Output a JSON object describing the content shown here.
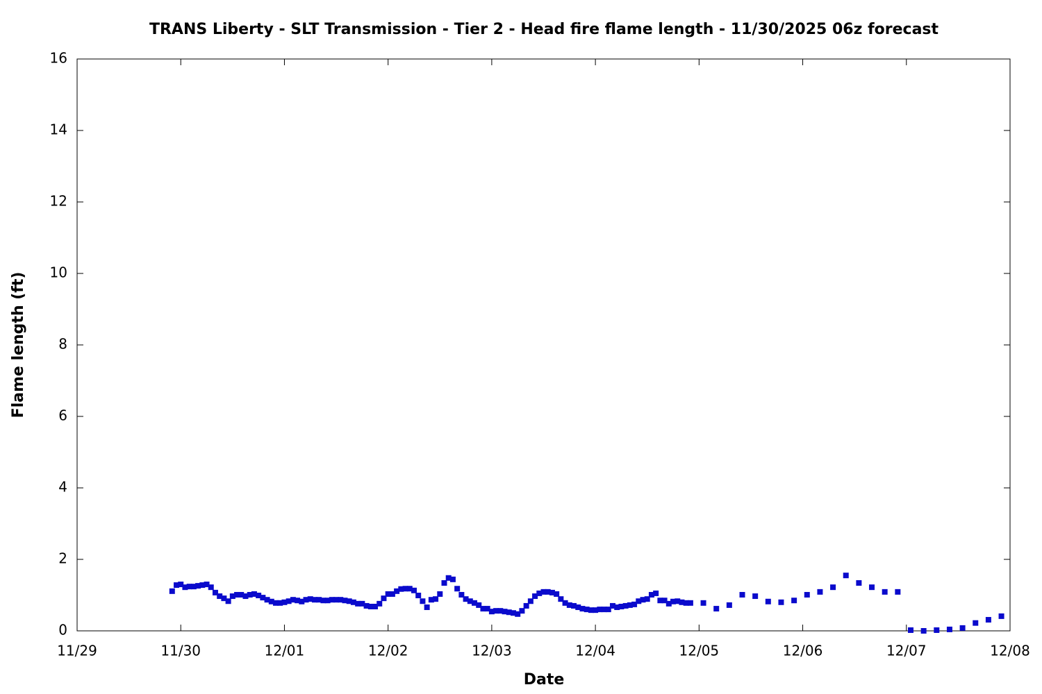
{
  "chart_data": {
    "type": "scatter",
    "title": "TRANS Liberty - SLT Transmission - Tier 2 - Head fire flame length - 11/30/2025 06z forecast",
    "x_label": "Date",
    "y_label": "Flame length (ft)",
    "color": "#0a0acc",
    "x": [
      22,
      23,
      24,
      25,
      26,
      27,
      28,
      29,
      30,
      31,
      32,
      33,
      34,
      35,
      36,
      37,
      38,
      39,
      40,
      41,
      42,
      43,
      44,
      45,
      46,
      47,
      48,
      49,
      50,
      51,
      52,
      53,
      54,
      55,
      56,
      57,
      58,
      59,
      60,
      61,
      62,
      63,
      64,
      65,
      66,
      67,
      68,
      69,
      70,
      71,
      72,
      73,
      74,
      75,
      76,
      77,
      78,
      79,
      80,
      81,
      82,
      83,
      84,
      85,
      86,
      87,
      88,
      89,
      90,
      91,
      92,
      93,
      94,
      95,
      96,
      97,
      98,
      99,
      100,
      101,
      102,
      103,
      104,
      105,
      106,
      107,
      108,
      109,
      110,
      111,
      112,
      113,
      114,
      115,
      116,
      117,
      118,
      119,
      120,
      121,
      122,
      123,
      124,
      125,
      126,
      127,
      128,
      129,
      130,
      131,
      132,
      133,
      134,
      135,
      136,
      137,
      138,
      139,
      140,
      141,
      142,
      145,
      148,
      151,
      154,
      157,
      160,
      163,
      166,
      169,
      172,
      175,
      178,
      181,
      184,
      187,
      190,
      193,
      196,
      199,
      202,
      205,
      208,
      211,
      214
    ],
    "values": [
      1.11,
      1.28,
      1.3,
      1.22,
      1.24,
      1.24,
      1.26,
      1.28,
      1.3,
      1.22,
      1.07,
      0.97,
      0.91,
      0.83,
      0.97,
      1.01,
      1.01,
      0.97,
      1.01,
      1.03,
      0.99,
      0.93,
      0.87,
      0.82,
      0.78,
      0.78,
      0.8,
      0.83,
      0.87,
      0.85,
      0.82,
      0.87,
      0.89,
      0.87,
      0.87,
      0.85,
      0.85,
      0.87,
      0.87,
      0.87,
      0.85,
      0.83,
      0.8,
      0.76,
      0.76,
      0.7,
      0.68,
      0.68,
      0.76,
      0.91,
      1.03,
      1.03,
      1.11,
      1.17,
      1.18,
      1.18,
      1.13,
      0.99,
      0.83,
      0.66,
      0.87,
      0.89,
      1.03,
      1.34,
      1.48,
      1.44,
      1.18,
      1.01,
      0.89,
      0.83,
      0.78,
      0.72,
      0.62,
      0.62,
      0.54,
      0.56,
      0.56,
      0.54,
      0.52,
      0.5,
      0.47,
      0.56,
      0.7,
      0.83,
      0.97,
      1.05,
      1.09,
      1.09,
      1.07,
      1.03,
      0.89,
      0.78,
      0.72,
      0.7,
      0.66,
      0.62,
      0.6,
      0.58,
      0.58,
      0.6,
      0.6,
      0.6,
      0.7,
      0.66,
      0.68,
      0.7,
      0.72,
      0.74,
      0.83,
      0.87,
      0.89,
      1.01,
      1.05,
      0.85,
      0.85,
      0.76,
      0.82,
      0.83,
      0.8,
      0.78,
      0.78,
      0.78,
      0.62,
      0.72,
      1.01,
      0.97,
      0.82,
      0.8,
      0.85,
      1.01,
      1.09,
      1.22,
      1.55,
      1.34,
      1.22,
      1.09,
      1.09,
      0.02,
      0,
      0.02,
      0.04,
      0.08,
      0.22,
      0.31,
      0.41
    ],
    "xlim": [
      0,
      216
    ],
    "xticks": [
      {
        "value": 0,
        "label": "11/29"
      },
      {
        "value": 24,
        "label": "11/30"
      },
      {
        "value": 48,
        "label": "12/01"
      },
      {
        "value": 72,
        "label": "12/02"
      },
      {
        "value": 96,
        "label": "12/03"
      },
      {
        "value": 120,
        "label": "12/04"
      },
      {
        "value": 144,
        "label": "12/05"
      },
      {
        "value": 168,
        "label": "12/06"
      },
      {
        "value": 192,
        "label": "12/07"
      },
      {
        "value": 216,
        "label": "12/08"
      }
    ],
    "ylim": [
      0,
      16
    ],
    "yticks": [
      0,
      2,
      4,
      6,
      8,
      10,
      12,
      14,
      16
    ],
    "grid": false
  }
}
